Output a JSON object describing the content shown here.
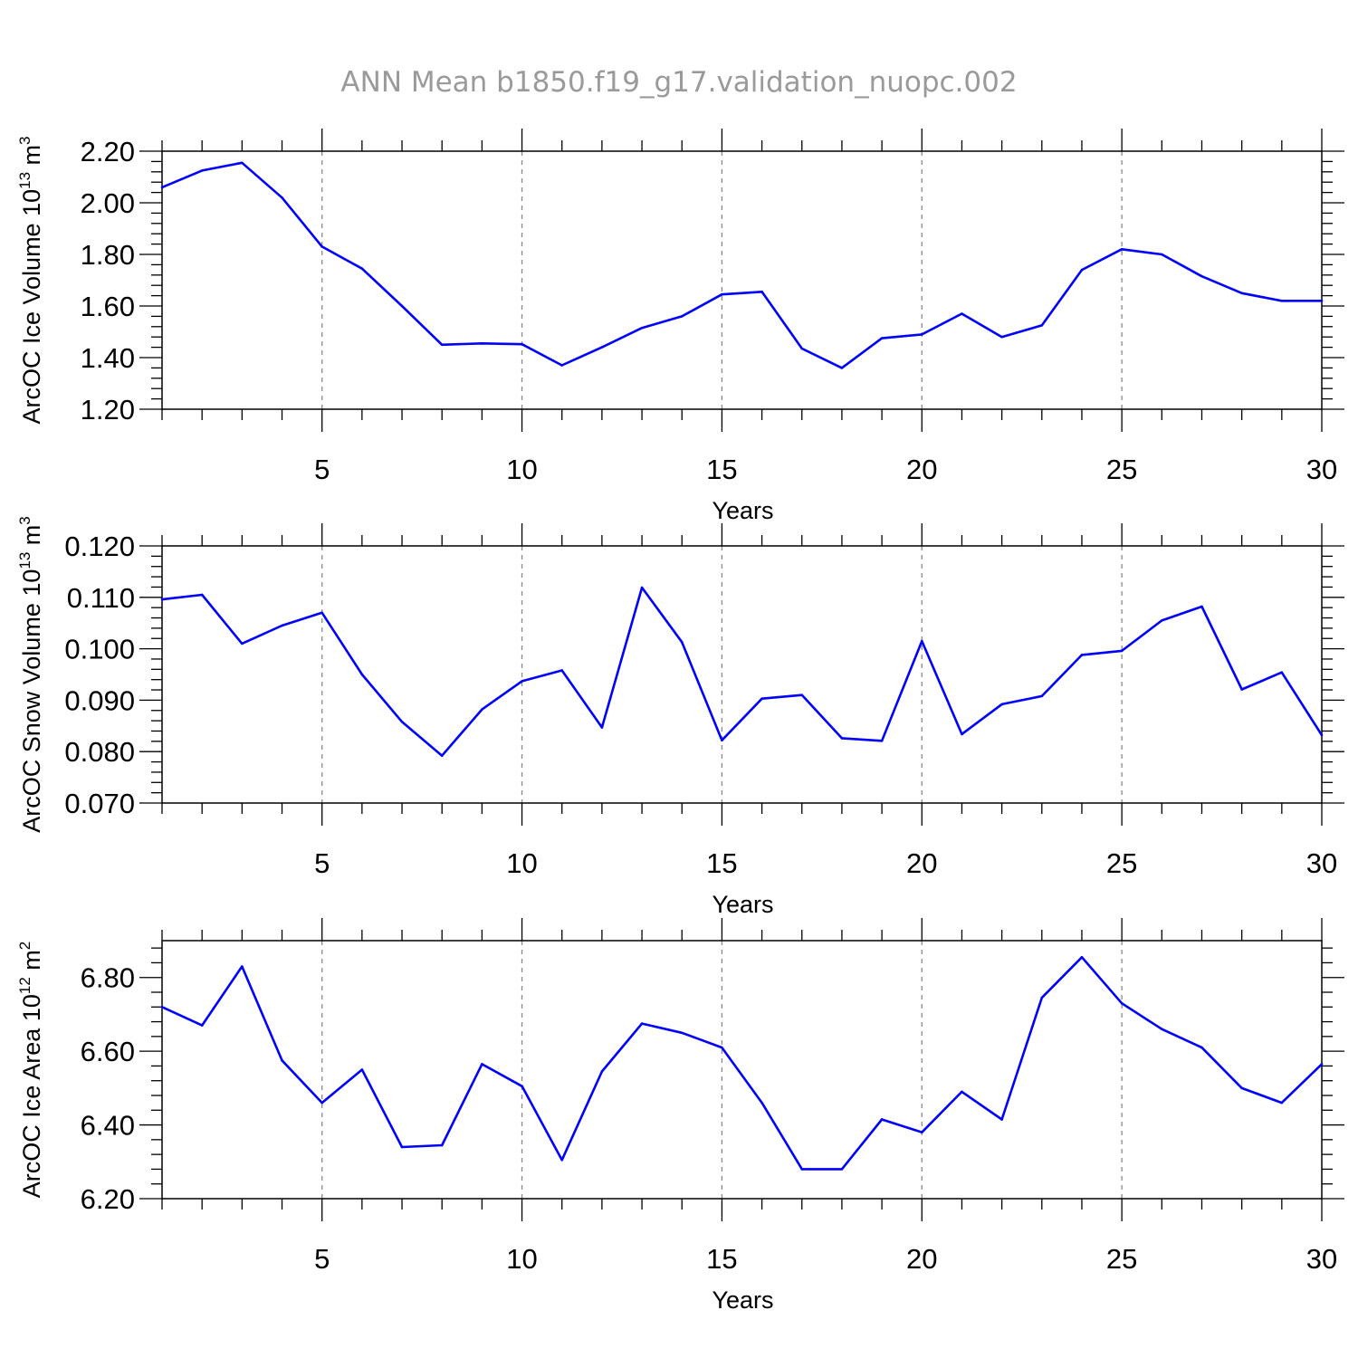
{
  "title": "ANN Mean b1850.f19_g17.validation_nuopc.002",
  "line_color": "#0000ff",
  "chart_data": [
    {
      "type": "line",
      "xlabel": "Years",
      "ylabel": {
        "main": "ArcOC Ice Volume 10",
        "sup": "13",
        "unit": " m",
        "unit_sup": "3"
      },
      "xlim": [
        1,
        30
      ],
      "ylim": [
        1.2,
        2.2
      ],
      "xticks": [
        "5",
        "10",
        "15",
        "20",
        "25",
        "30"
      ],
      "yticks": [
        "1.20",
        "1.40",
        "1.60",
        "1.80",
        "2.00",
        "2.20"
      ],
      "x": [
        1,
        2,
        3,
        4,
        5,
        6,
        7,
        8,
        9,
        10,
        11,
        12,
        13,
        14,
        15,
        16,
        17,
        18,
        19,
        20,
        21,
        22,
        23,
        24,
        25,
        26,
        27,
        28,
        29,
        30
      ],
      "values": [
        2.06,
        2.125,
        2.155,
        2.02,
        1.83,
        1.745,
        1.6,
        1.45,
        1.455,
        1.452,
        1.37,
        1.44,
        1.515,
        1.56,
        1.645,
        1.655,
        1.435,
        1.36,
        1.475,
        1.49,
        1.57,
        1.48,
        1.525,
        1.74,
        1.82,
        1.8,
        1.715,
        1.65,
        1.62,
        1.62
      ]
    },
    {
      "type": "line",
      "xlabel": "Years",
      "ylabel": {
        "main": "ArcOC Snow Volume 10",
        "sup": "13",
        "unit": " m",
        "unit_sup": "3"
      },
      "xlim": [
        1,
        30
      ],
      "ylim": [
        0.07,
        0.12
      ],
      "xticks": [
        "5",
        "10",
        "15",
        "20",
        "25",
        "30"
      ],
      "yticks": [
        "0.070",
        "0.080",
        "0.090",
        "0.100",
        "0.110",
        "0.120"
      ],
      "x": [
        1,
        2,
        3,
        4,
        5,
        6,
        7,
        8,
        9,
        10,
        11,
        12,
        13,
        14,
        15,
        16,
        17,
        18,
        19,
        20,
        21,
        22,
        23,
        24,
        25,
        26,
        27,
        28,
        29,
        30
      ],
      "values": [
        0.1096,
        0.1105,
        0.101,
        0.1045,
        0.107,
        0.095,
        0.0858,
        0.0792,
        0.0882,
        0.0937,
        0.0958,
        0.0847,
        0.1119,
        0.1013,
        0.0822,
        0.0903,
        0.091,
        0.0826,
        0.0821,
        0.1015,
        0.0834,
        0.0892,
        0.0908,
        0.0988,
        0.0996,
        0.1055,
        0.1082,
        0.0921,
        0.0954,
        0.0832
      ]
    },
    {
      "type": "line",
      "xlabel": "Years",
      "ylabel": {
        "main": "ArcOC Ice Area 10",
        "sup": "12",
        "unit": " m",
        "unit_sup": "2"
      },
      "xlim": [
        1,
        30
      ],
      "ylim": [
        6.2,
        6.9
      ],
      "xticks": [
        "5",
        "10",
        "15",
        "20",
        "25",
        "30"
      ],
      "yticks": [
        "6.20",
        "6.40",
        "6.60",
        "6.80"
      ],
      "x": [
        1,
        2,
        3,
        4,
        5,
        6,
        7,
        8,
        9,
        10,
        11,
        12,
        13,
        14,
        15,
        16,
        17,
        18,
        19,
        20,
        21,
        22,
        23,
        24,
        25,
        26,
        27,
        28,
        29,
        30
      ],
      "values": [
        6.72,
        6.67,
        6.83,
        6.575,
        6.46,
        6.55,
        6.34,
        6.345,
        6.565,
        6.505,
        6.305,
        6.545,
        6.675,
        6.65,
        6.61,
        6.46,
        6.28,
        6.28,
        6.415,
        6.38,
        6.49,
        6.415,
        6.745,
        6.855,
        6.73,
        6.66,
        6.61,
        6.5,
        6.46,
        6.565
      ]
    }
  ]
}
